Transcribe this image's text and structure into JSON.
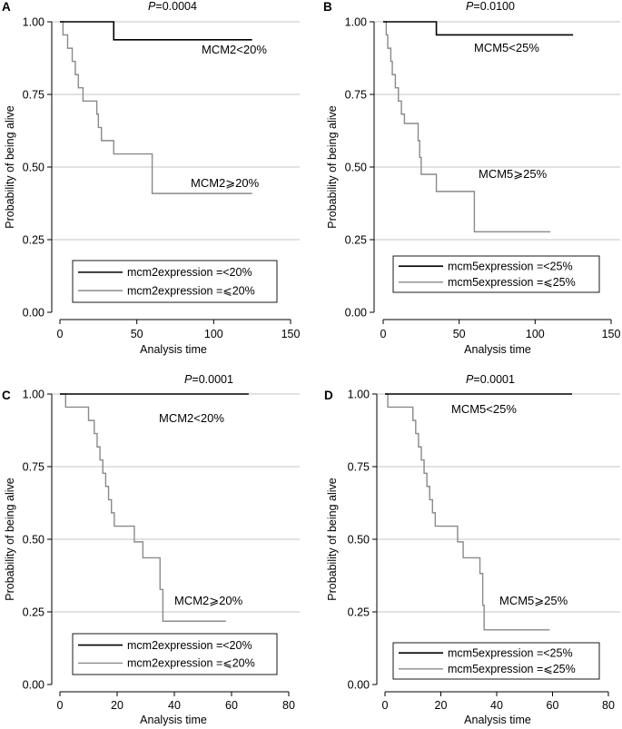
{
  "chart_data": [
    {
      "type": "line",
      "panel": "A",
      "p_label": "P",
      "p_value": "=0.0004",
      "xlabel": "Analysis time",
      "ylabel": "Probability of being alive",
      "xlim": [
        0,
        150
      ],
      "ylim": [
        0,
        1
      ],
      "xticks": [
        0,
        50,
        100,
        150
      ],
      "xtick_labels": [
        "0",
        "50",
        "100",
        "150"
      ],
      "yticks": [
        0,
        0.25,
        0.5,
        0.75,
        1
      ],
      "ytick_labels": [
        "0.00",
        "0.25",
        "0.50",
        "0.75",
        "1.00"
      ],
      "grid": true,
      "legend_position": "bottom",
      "series": [
        {
          "name": "MCM2<20%",
          "legend_label": "mcm2expression =<20%",
          "color": "#000000",
          "steps": [
            [
              0,
              1.0
            ],
            [
              35,
              0.938
            ]
          ],
          "t_end": 125
        },
        {
          "name": "MCM2⩾20%",
          "legend_label": "mcm2expression =⩽20%",
          "color": "#8a8a8a",
          "steps": [
            [
              0,
              1.0
            ],
            [
              2,
              0.955
            ],
            [
              5,
              0.909
            ],
            [
              8,
              0.864
            ],
            [
              10,
              0.818
            ],
            [
              12,
              0.773
            ],
            [
              15,
              0.727
            ],
            [
              24,
              0.682
            ],
            [
              25,
              0.636
            ],
            [
              27,
              0.591
            ],
            [
              35,
              0.545
            ],
            [
              60,
              0.409
            ]
          ],
          "t_end": 125
        }
      ]
    },
    {
      "type": "line",
      "panel": "B",
      "p_label": "P",
      "p_value": "=0.0100",
      "xlabel": "Analysis time",
      "ylabel": "Probability of being alive",
      "xlim": [
        0,
        150
      ],
      "ylim": [
        0,
        1
      ],
      "xticks": [
        0,
        50,
        100,
        150
      ],
      "xtick_labels": [
        "0",
        "50",
        "100",
        "150"
      ],
      "yticks": [
        0,
        0.25,
        0.5,
        0.75,
        1
      ],
      "ytick_labels": [
        "0.00",
        "0.25",
        "0.50",
        "0.75",
        "1.00"
      ],
      "grid": true,
      "legend_position": "bottom",
      "series": [
        {
          "name": "MCM5<25%",
          "legend_label": "mcm5expression =<25%",
          "color": "#000000",
          "steps": [
            [
              0,
              1.0
            ],
            [
              35,
              0.955
            ]
          ],
          "t_end": 125
        },
        {
          "name": "MCM5⩾25%",
          "legend_label": "mcm5expression =⩽25%",
          "color": "#8a8a8a",
          "steps": [
            [
              0,
              1.0
            ],
            [
              2,
              0.955
            ],
            [
              3,
              0.909
            ],
            [
              5,
              0.864
            ],
            [
              6,
              0.818
            ],
            [
              8,
              0.773
            ],
            [
              10,
              0.727
            ],
            [
              12,
              0.682
            ],
            [
              14,
              0.65
            ],
            [
              23,
              0.591
            ],
            [
              24,
              0.533
            ],
            [
              25,
              0.475
            ],
            [
              35,
              0.416
            ],
            [
              60,
              0.277
            ]
          ],
          "t_end": 110
        }
      ]
    },
    {
      "type": "line",
      "panel": "C",
      "p_label": "P",
      "p_value": "=0.0001",
      "xlabel": "Analysis time",
      "ylabel": "Probability of being alive",
      "xlim": [
        0,
        80
      ],
      "ylim": [
        0,
        1
      ],
      "xticks": [
        0,
        20,
        40,
        60,
        80
      ],
      "xtick_labels": [
        "0",
        "20",
        "40",
        "60",
        "80"
      ],
      "yticks": [
        0,
        0.25,
        0.5,
        0.75,
        1
      ],
      "ytick_labels": [
        "0.00",
        "0.25",
        "0.50",
        "0.75",
        "1.00"
      ],
      "grid": true,
      "legend_position": "bottom",
      "series": [
        {
          "name": "MCM2<20%",
          "legend_label": "mcm2expression =<20%",
          "color": "#000000",
          "steps": [
            [
              0,
              1.0
            ]
          ],
          "t_end": 66
        },
        {
          "name": "MCM2⩾20%",
          "legend_label": "mcm2expression =⩽20%",
          "color": "#8a8a8a",
          "steps": [
            [
              0,
              1.0
            ],
            [
              2,
              0.955
            ],
            [
              10,
              0.909
            ],
            [
              12,
              0.864
            ],
            [
              13,
              0.818
            ],
            [
              14,
              0.773
            ],
            [
              15,
              0.727
            ],
            [
              16,
              0.682
            ],
            [
              17,
              0.636
            ],
            [
              18,
              0.591
            ],
            [
              19,
              0.545
            ],
            [
              26,
              0.491
            ],
            [
              29,
              0.436
            ],
            [
              35,
              0.327
            ],
            [
              36,
              0.218
            ]
          ],
          "t_end": 58
        }
      ]
    },
    {
      "type": "line",
      "panel": "D",
      "p_label": "P",
      "p_value": "=0.0001",
      "xlabel": "Analysis time",
      "ylabel": "Probability of being alive",
      "xlim": [
        0,
        80
      ],
      "ylim": [
        0,
        1
      ],
      "xticks": [
        0,
        20,
        40,
        60,
        80
      ],
      "xtick_labels": [
        "0",
        "20",
        "40",
        "60",
        "80"
      ],
      "yticks": [
        0,
        0.25,
        0.5,
        0.75,
        1
      ],
      "ytick_labels": [
        "0.00",
        "0.25",
        "0.50",
        "0.75",
        "1.00"
      ],
      "grid": true,
      "legend_position": "bottom",
      "series": [
        {
          "name": "MCM5<25%",
          "legend_label": "mcm5expression =<25%",
          "color": "#000000",
          "steps": [
            [
              0,
              1.0
            ]
          ],
          "t_end": 67
        },
        {
          "name": "MCM5⩾25%",
          "legend_label": "mcm5expression =⩽25%",
          "color": "#8a8a8a",
          "steps": [
            [
              0,
              1.0
            ],
            [
              1,
              0.955
            ],
            [
              10,
              0.909
            ],
            [
              11,
              0.864
            ],
            [
              12,
              0.818
            ],
            [
              13,
              0.773
            ],
            [
              14,
              0.727
            ],
            [
              15,
              0.682
            ],
            [
              16,
              0.636
            ],
            [
              17,
              0.591
            ],
            [
              18,
              0.545
            ],
            [
              26,
              0.491
            ],
            [
              28,
              0.436
            ],
            [
              34,
              0.382
            ],
            [
              35,
              0.273
            ],
            [
              35.5,
              0.188
            ]
          ],
          "t_end": 59
        }
      ]
    }
  ]
}
